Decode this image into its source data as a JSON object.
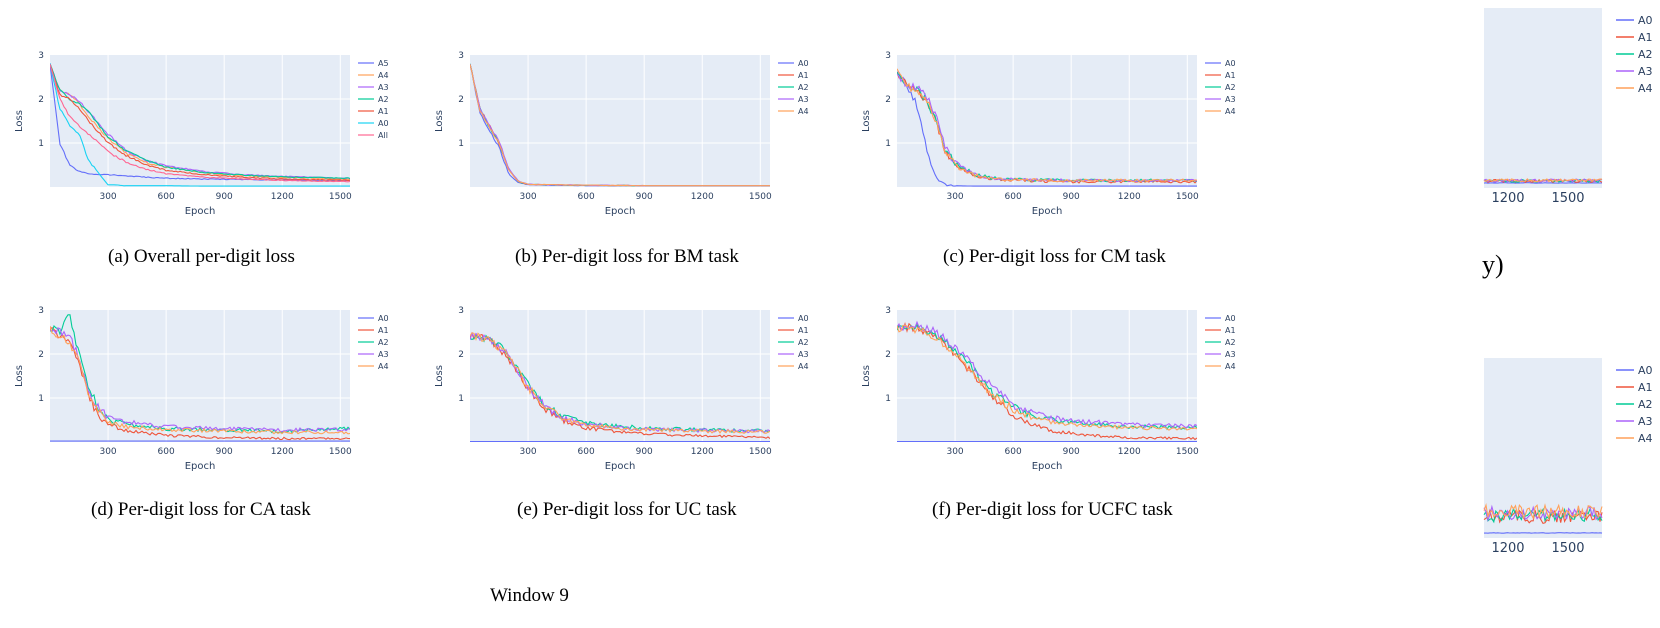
{
  "colors": {
    "A0": "#636efa",
    "A1": "#ef553b",
    "A2": "#00cc96",
    "A3": "#ab63fa",
    "A4": "#ffa15a",
    "A5": "#636efa",
    "All": "#ff6692",
    "A0_overall": "#19d3f3",
    "plot_bg": "#e5ecf6"
  },
  "charts": [
    {
      "id": "a",
      "caption": "(a) Overall per-digit loss",
      "xlabel": "Epoch",
      "ylabel": "Loss",
      "yticks": [
        "1",
        "2",
        "3"
      ],
      "xticks": [
        "300",
        "600",
        "900",
        "1200",
        "1500"
      ],
      "legend": [
        "A5",
        "A4",
        "A3",
        "A2",
        "A1",
        "A0",
        "All"
      ]
    },
    {
      "id": "b",
      "caption": "(b) Per-digit loss for BM task",
      "xlabel": "Epoch",
      "ylabel": "Loss",
      "yticks": [
        "1",
        "2",
        "3"
      ],
      "xticks": [
        "300",
        "600",
        "900",
        "1200",
        "1500"
      ],
      "legend": [
        "A0",
        "A1",
        "A2",
        "A3",
        "A4"
      ]
    },
    {
      "id": "c",
      "caption": "(c) Per-digit loss for CM task",
      "xlabel": "Epoch",
      "ylabel": "Loss",
      "yticks": [
        "1",
        "2",
        "3"
      ],
      "xticks": [
        "300",
        "600",
        "900",
        "1200",
        "1500"
      ],
      "legend": [
        "A0",
        "A1",
        "A2",
        "A3",
        "A4"
      ]
    },
    {
      "id": "d",
      "caption": "(d) Per-digit loss for CA task",
      "xlabel": "Epoch",
      "ylabel": "Loss",
      "yticks": [
        "1",
        "2",
        "3"
      ],
      "xticks": [
        "300",
        "600",
        "900",
        "1200",
        "1500"
      ],
      "legend": [
        "A0",
        "A1",
        "A2",
        "A3",
        "A4"
      ]
    },
    {
      "id": "e",
      "caption": "(e) Per-digit loss for UC task",
      "xlabel": "Epoch",
      "ylabel": "Loss",
      "yticks": [
        "1",
        "2",
        "3"
      ],
      "xticks": [
        "300",
        "600",
        "900",
        "1200",
        "1500"
      ],
      "legend": [
        "A0",
        "A1",
        "A2",
        "A3",
        "A4"
      ]
    },
    {
      "id": "f",
      "caption": "(f) Per-digit loss for UCFC task",
      "xlabel": "Epoch",
      "ylabel": "Loss",
      "yticks": [
        "1",
        "2",
        "3"
      ],
      "xticks": [
        "300",
        "600",
        "900",
        "1200",
        "1500"
      ],
      "legend": [
        "A0",
        "A1",
        "A2",
        "A3",
        "A4"
      ]
    }
  ],
  "fragments": [
    {
      "id": "top",
      "legend": [
        "A0",
        "A1",
        "A2",
        "A3",
        "A4"
      ],
      "xticks": [
        "1200",
        "1500"
      ]
    },
    {
      "id": "bottom",
      "legend": [
        "A0",
        "A1",
        "A2",
        "A3",
        "A4"
      ],
      "xticks": [
        "1200",
        "1500"
      ]
    }
  ],
  "fragment_text": "y)",
  "footer": "Window 9",
  "chart_data": [
    {
      "type": "line",
      "title": "",
      "xlabel": "Epoch",
      "ylabel": "Loss",
      "xlim": [
        0,
        1550
      ],
      "ylim": [
        0,
        3
      ],
      "x": [
        0,
        50,
        100,
        150,
        200,
        300,
        400,
        500,
        600,
        800,
        1000,
        1200,
        1550
      ],
      "series": [
        {
          "name": "A5",
          "values": [
            2.8,
            1.0,
            0.5,
            0.35,
            0.3,
            0.28,
            0.25,
            0.22,
            0.2,
            0.18,
            0.17,
            0.16,
            0.15
          ]
        },
        {
          "name": "A4",
          "values": [
            2.8,
            2.2,
            2.1,
            1.9,
            1.6,
            1.1,
            0.75,
            0.55,
            0.45,
            0.32,
            0.26,
            0.22,
            0.18
          ]
        },
        {
          "name": "A3",
          "values": [
            2.8,
            2.2,
            2.1,
            1.95,
            1.7,
            1.2,
            0.8,
            0.6,
            0.48,
            0.35,
            0.28,
            0.24,
            0.2
          ]
        },
        {
          "name": "A2",
          "values": [
            2.8,
            2.2,
            2.0,
            1.9,
            1.7,
            1.15,
            0.8,
            0.6,
            0.45,
            0.33,
            0.27,
            0.23,
            0.2
          ]
        },
        {
          "name": "A1",
          "values": [
            2.8,
            2.1,
            2.0,
            1.8,
            1.5,
            1.0,
            0.7,
            0.5,
            0.38,
            0.28,
            0.22,
            0.18,
            0.15
          ]
        },
        {
          "name": "A0",
          "values": [
            2.8,
            1.8,
            1.4,
            1.2,
            0.6,
            0.05,
            0.03,
            0.03,
            0.03,
            0.02,
            0.02,
            0.02,
            0.02
          ]
        },
        {
          "name": "All",
          "values": [
            2.8,
            2.0,
            1.6,
            1.4,
            1.2,
            0.8,
            0.55,
            0.4,
            0.3,
            0.22,
            0.18,
            0.15,
            0.12
          ]
        }
      ]
    },
    {
      "type": "line",
      "title": "",
      "xlabel": "Epoch",
      "ylabel": "Loss",
      "xlim": [
        0,
        1550
      ],
      "ylim": [
        0,
        3
      ],
      "x": [
        0,
        50,
        100,
        150,
        200,
        250,
        300,
        600,
        900,
        1200,
        1550
      ],
      "series": [
        {
          "name": "A0",
          "values": [
            2.8,
            1.7,
            1.3,
            0.9,
            0.3,
            0.1,
            0.05,
            0.03,
            0.03,
            0.03,
            0.03
          ]
        },
        {
          "name": "A1",
          "values": [
            2.8,
            1.8,
            1.4,
            1.0,
            0.4,
            0.12,
            0.06,
            0.04,
            0.03,
            0.03,
            0.03
          ]
        },
        {
          "name": "A2",
          "values": [
            2.8,
            1.8,
            1.35,
            1.0,
            0.4,
            0.12,
            0.06,
            0.04,
            0.03,
            0.03,
            0.03
          ]
        },
        {
          "name": "A3",
          "values": [
            2.8,
            1.8,
            1.4,
            1.05,
            0.42,
            0.13,
            0.06,
            0.04,
            0.03,
            0.03,
            0.03
          ]
        },
        {
          "name": "A4",
          "values": [
            2.8,
            1.75,
            1.35,
            1.0,
            0.38,
            0.12,
            0.06,
            0.04,
            0.03,
            0.03,
            0.03
          ]
        }
      ]
    },
    {
      "type": "line",
      "title": "",
      "xlabel": "Epoch",
      "ylabel": "Loss",
      "xlim": [
        0,
        1550
      ],
      "ylim": [
        0,
        3
      ],
      "x": [
        0,
        50,
        100,
        150,
        200,
        250,
        300,
        400,
        500,
        600,
        900,
        1200,
        1550
      ],
      "series": [
        {
          "name": "A0",
          "values": [
            2.6,
            2.3,
            1.9,
            0.9,
            0.2,
            0.05,
            0.03,
            0.02,
            0.02,
            0.02,
            0.02,
            0.02,
            0.02
          ]
        },
        {
          "name": "A1",
          "values": [
            2.6,
            2.3,
            2.2,
            2.0,
            1.5,
            0.8,
            0.5,
            0.25,
            0.18,
            0.15,
            0.12,
            0.12,
            0.12
          ]
        },
        {
          "name": "A2",
          "values": [
            2.6,
            2.3,
            2.2,
            2.0,
            1.5,
            0.85,
            0.55,
            0.28,
            0.2,
            0.17,
            0.15,
            0.15,
            0.15
          ]
        },
        {
          "name": "A3",
          "values": [
            2.6,
            2.3,
            2.25,
            2.1,
            1.6,
            0.9,
            0.55,
            0.28,
            0.2,
            0.17,
            0.15,
            0.15,
            0.15
          ]
        },
        {
          "name": "A4",
          "values": [
            2.6,
            2.3,
            2.2,
            2.0,
            1.5,
            0.85,
            0.5,
            0.27,
            0.2,
            0.17,
            0.15,
            0.15,
            0.15
          ]
        }
      ]
    },
    {
      "type": "line",
      "title": "",
      "xlabel": "Epoch",
      "ylabel": "Loss",
      "xlim": [
        0,
        1550
      ],
      "ylim": [
        0,
        3
      ],
      "x": [
        0,
        50,
        100,
        150,
        200,
        250,
        300,
        400,
        600,
        900,
        1200,
        1550
      ],
      "series": [
        {
          "name": "A0",
          "values": [
            0.02,
            0.02,
            0.02,
            0.02,
            0.02,
            0.02,
            0.02,
            0.02,
            0.02,
            0.02,
            0.02,
            0.02
          ]
        },
        {
          "name": "A1",
          "values": [
            2.6,
            2.4,
            2.3,
            1.8,
            1.0,
            0.6,
            0.4,
            0.25,
            0.15,
            0.1,
            0.08,
            0.08
          ]
        },
        {
          "name": "A2",
          "values": [
            2.6,
            2.5,
            2.9,
            2.0,
            1.2,
            0.8,
            0.5,
            0.4,
            0.3,
            0.28,
            0.25,
            0.3
          ]
        },
        {
          "name": "A3",
          "values": [
            2.6,
            2.5,
            2.4,
            1.9,
            1.1,
            0.8,
            0.55,
            0.45,
            0.35,
            0.3,
            0.28,
            0.28
          ]
        },
        {
          "name": "A4",
          "values": [
            2.6,
            2.4,
            2.3,
            1.8,
            1.0,
            0.7,
            0.45,
            0.35,
            0.28,
            0.25,
            0.22,
            0.22
          ]
        }
      ]
    },
    {
      "type": "line",
      "title": "",
      "xlabel": "Epoch",
      "ylabel": "Loss",
      "xlim": [
        0,
        1550
      ],
      "ylim": [
        0,
        3
      ],
      "x": [
        0,
        100,
        200,
        300,
        400,
        500,
        600,
        800,
        1000,
        1200,
        1550
      ],
      "series": [
        {
          "name": "A0",
          "values": [
            0.01,
            0.01,
            0.01,
            0.01,
            0.01,
            0.01,
            0.01,
            0.01,
            0.01,
            0.01,
            0.01
          ]
        },
        {
          "name": "A1",
          "values": [
            2.4,
            2.35,
            1.9,
            1.2,
            0.7,
            0.45,
            0.32,
            0.22,
            0.17,
            0.14,
            0.1
          ]
        },
        {
          "name": "A2",
          "values": [
            2.4,
            2.35,
            2.0,
            1.3,
            0.8,
            0.55,
            0.42,
            0.35,
            0.3,
            0.28,
            0.25
          ]
        },
        {
          "name": "A3",
          "values": [
            2.4,
            2.35,
            1.95,
            1.25,
            0.75,
            0.52,
            0.4,
            0.32,
            0.28,
            0.26,
            0.24
          ]
        },
        {
          "name": "A4",
          "values": [
            2.4,
            2.35,
            1.95,
            1.25,
            0.75,
            0.5,
            0.38,
            0.3,
            0.27,
            0.25,
            0.22
          ]
        }
      ]
    },
    {
      "type": "line",
      "title": "",
      "xlabel": "Epoch",
      "ylabel": "Loss",
      "xlim": [
        0,
        1550
      ],
      "ylim": [
        0,
        3
      ],
      "x": [
        0,
        100,
        200,
        300,
        400,
        500,
        600,
        700,
        800,
        1000,
        1200,
        1550
      ],
      "series": [
        {
          "name": "A0",
          "values": [
            0.01,
            0.01,
            0.01,
            0.01,
            0.01,
            0.01,
            0.01,
            0.01,
            0.01,
            0.01,
            0.01,
            0.01
          ]
        },
        {
          "name": "A1",
          "values": [
            2.6,
            2.6,
            2.4,
            2.0,
            1.5,
            1.0,
            0.6,
            0.4,
            0.25,
            0.15,
            0.1,
            0.08
          ]
        },
        {
          "name": "A2",
          "values": [
            2.6,
            2.6,
            2.45,
            2.1,
            1.6,
            1.1,
            0.8,
            0.6,
            0.5,
            0.4,
            0.35,
            0.32
          ]
        },
        {
          "name": "A3",
          "values": [
            2.6,
            2.65,
            2.5,
            2.15,
            1.7,
            1.2,
            0.85,
            0.65,
            0.55,
            0.45,
            0.4,
            0.35
          ]
        },
        {
          "name": "A4",
          "values": [
            2.6,
            2.55,
            2.4,
            2.0,
            1.5,
            1.05,
            0.75,
            0.55,
            0.45,
            0.38,
            0.32,
            0.3
          ]
        }
      ]
    }
  ]
}
